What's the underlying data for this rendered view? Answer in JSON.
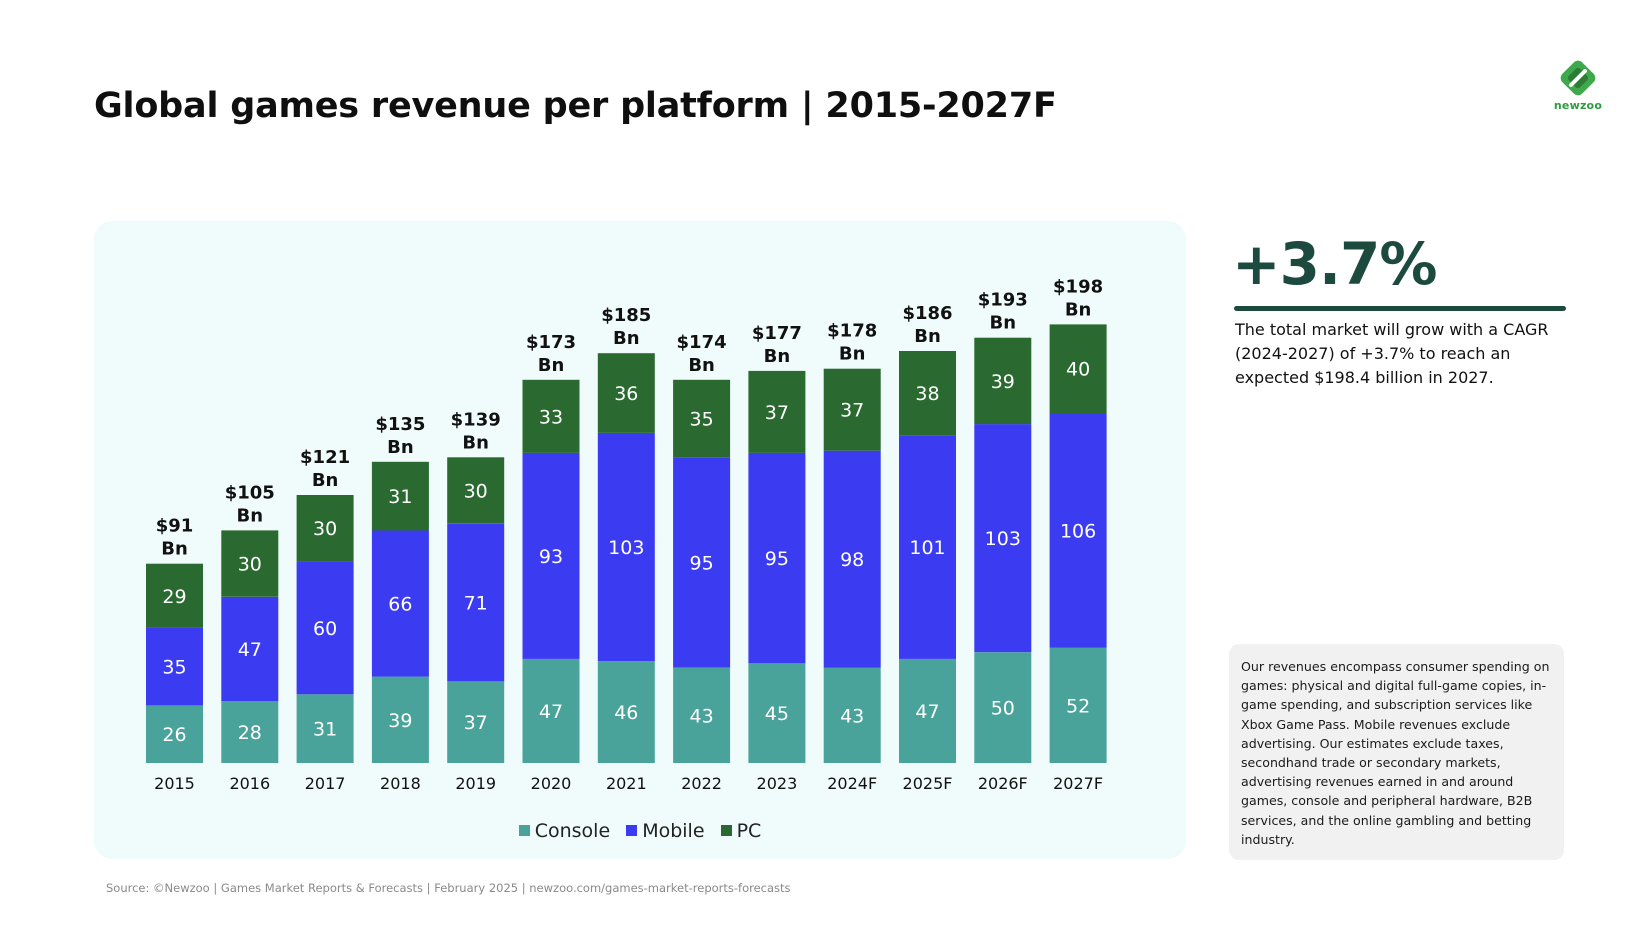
{
  "header": {
    "title": "Global games revenue per platform | 2015-2027F",
    "logo_text": "newzoo"
  },
  "colors": {
    "console": "#4aa39a",
    "mobile": "#3b3bf2",
    "pc": "#2a6a30",
    "panel_background": "#f0fbfb",
    "accent": "#1d4a3f"
  },
  "chart_data": {
    "type": "bar",
    "stacked": true,
    "categories": [
      "2015",
      "2016",
      "2017",
      "2018",
      "2019",
      "2020",
      "2021",
      "2022",
      "2023",
      "2024F",
      "2025F",
      "2026F",
      "2027F"
    ],
    "series": [
      {
        "name": "Console",
        "values": [
          26,
          28,
          31,
          39,
          37,
          47,
          46,
          43,
          45,
          43,
          47,
          50,
          52
        ]
      },
      {
        "name": "Mobile",
        "values": [
          35,
          47,
          60,
          66,
          71,
          93,
          103,
          95,
          95,
          98,
          101,
          103,
          106
        ]
      },
      {
        "name": "PC",
        "values": [
          29,
          30,
          30,
          31,
          30,
          33,
          36,
          35,
          37,
          37,
          38,
          39,
          40
        ]
      }
    ],
    "total_labels": [
      "$91",
      "$105",
      "$121",
      "$135",
      "$139",
      "$173",
      "$185",
      "$174",
      "$177",
      "$178",
      "$186",
      "$193",
      "$198"
    ],
    "total_unit": "Bn",
    "ylim": [
      0,
      230
    ],
    "grid": false,
    "legend_position": "bottom-center"
  },
  "stat": {
    "value": "+3.7%",
    "description": "The total market will grow with a CAGR (2024-2027) of +3.7% to reach an expected $198.4 billion in 2027."
  },
  "note": "Our revenues encompass consumer spending on games: physical and digital full-game copies, in-game spending, and subscription services like Xbox Game Pass. Mobile revenues exclude advertising. Our estimates exclude taxes, secondhand trade or secondary markets, advertising revenues earned in and around games, console and peripheral hardware, B2B services, and the online gambling and betting industry.",
  "source": "Source: ©Newzoo | Games Market Reports & Forecasts | February 2025 | newzoo.com/games-market-reports-forecasts"
}
